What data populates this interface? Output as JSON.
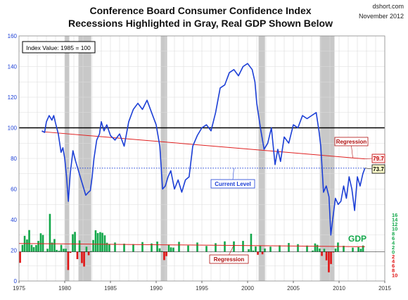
{
  "title_line1": "Conference Board Consumer Confidence Index",
  "title_line2": "Recessions Highlighted in Gray, Real GDP Shown Below",
  "source": "dshort.com",
  "date_label": "November 2012",
  "index_note": "Index Value: 1985  = 100",
  "chart_data": {
    "type": "line",
    "x_ticks": [
      "1975",
      "1980",
      "1985",
      "1990",
      "1995",
      "2000",
      "2005",
      "2010",
      "2015"
    ],
    "y_ticks": [
      "0",
      "20",
      "40",
      "60",
      "80",
      "100",
      "120",
      "140",
      "160"
    ],
    "gdp_ticks": [
      "16",
      "14",
      "12",
      "10",
      "8",
      "6",
      "4",
      "2",
      "0",
      "2",
      "4",
      "6",
      "8",
      "10"
    ],
    "xlim": [
      1975,
      2015
    ],
    "ylim": [
      0,
      160
    ],
    "recessions": [
      [
        1980.0,
        1980.5
      ],
      [
        1981.5,
        1982.9
      ],
      [
        1990.5,
        1991.2
      ],
      [
        2001.2,
        2001.9
      ],
      [
        2007.9,
        2009.5
      ]
    ],
    "reference_line_value": 100,
    "series": [
      {
        "name": "Consumer Confidence Index",
        "x": [
          1977.5,
          1977.8,
          1978.0,
          1978.3,
          1978.6,
          1978.8,
          1979.0,
          1979.3,
          1979.6,
          1979.8,
          1980.0,
          1980.2,
          1980.4,
          1980.6,
          1980.9,
          1981.2,
          1981.5,
          1981.8,
          1982.0,
          1982.3,
          1982.6,
          1982.8,
          1983.0,
          1983.2,
          1983.5,
          1983.8,
          1984.0,
          1984.3,
          1984.6,
          1985.0,
          1985.5,
          1986.0,
          1986.5,
          1987.0,
          1987.5,
          1988.0,
          1988.5,
          1989.0,
          1989.5,
          1990.0,
          1990.4,
          1990.7,
          1991.0,
          1991.3,
          1991.6,
          1992.0,
          1992.4,
          1992.8,
          1993.2,
          1993.6,
          1994.0,
          1994.5,
          1995.0,
          1995.5,
          1996.0,
          1996.5,
          1997.0,
          1997.5,
          1998.0,
          1998.5,
          1999.0,
          1999.5,
          2000.0,
          2000.5,
          2000.8,
          2001.0,
          2001.4,
          2001.8,
          2002.2,
          2002.6,
          2003.0,
          2003.3,
          2003.6,
          2004.0,
          2004.5,
          2005.0,
          2005.5,
          2006.0,
          2006.5,
          2007.0,
          2007.5,
          2007.8,
          2008.0,
          2008.3,
          2008.6,
          2008.9,
          2009.1,
          2009.3,
          2009.6,
          2009.9,
          2010.2,
          2010.5,
          2010.8,
          2011.1,
          2011.4,
          2011.7,
          2012.0,
          2012.3,
          2012.6,
          2012.83
        ],
        "values": [
          98,
          97,
          104,
          108,
          105,
          108,
          103,
          96,
          84,
          87,
          80,
          68,
          52,
          70,
          85,
          78,
          72,
          66,
          62,
          56,
          58,
          59,
          68,
          80,
          92,
          96,
          104,
          98,
          102,
          95,
          92,
          96,
          88,
          104,
          112,
          116,
          112,
          118,
          110,
          102,
          88,
          60,
          62,
          68,
          72,
          60,
          66,
          58,
          66,
          68,
          88,
          95,
          100,
          102,
          98,
          110,
          126,
          128,
          136,
          138,
          134,
          140,
          142,
          138,
          130,
          116,
          100,
          86,
          90,
          100,
          76,
          86,
          78,
          94,
          90,
          102,
          100,
          108,
          106,
          108,
          110,
          98,
          88,
          58,
          62,
          55,
          30,
          40,
          54,
          50,
          52,
          62,
          54,
          68,
          60,
          46,
          68,
          62,
          70,
          73.7
        ],
        "color": "#1c3fd6"
      },
      {
        "name": "GDP",
        "x": [
          1975.12,
          1975.38,
          1975.62,
          1975.88,
          1976.12,
          1976.38,
          1976.62,
          1976.88,
          1977.12,
          1977.38,
          1977.62,
          1977.88,
          1978.12,
          1978.38,
          1978.62,
          1978.88,
          1979.12,
          1979.38,
          1979.62,
          1979.88,
          1980.12,
          1980.38,
          1980.62,
          1980.88,
          1981.12,
          1981.38,
          1981.62,
          1981.88,
          1982.12,
          1982.38,
          1982.62,
          1982.88,
          1983.12,
          1983.38,
          1983.62,
          1983.88,
          1984.12,
          1984.38,
          1984.62,
          1984.88,
          1985.5,
          1986.5,
          1987.5,
          1988.5,
          1989.5,
          1990.12,
          1990.38,
          1990.62,
          1990.88,
          1991.12,
          1991.38,
          1991.62,
          1991.88,
          1992.5,
          1993.5,
          1994.5,
          1995.5,
          1996.5,
          1997.5,
          1998.5,
          1999.5,
          2000.12,
          2000.38,
          2000.62,
          2000.88,
          2001.12,
          2001.38,
          2001.62,
          2001.88,
          2002.5,
          2003.5,
          2004.5,
          2005.5,
          2006.5,
          2007.12,
          2007.38,
          2007.62,
          2007.88,
          2008.12,
          2008.38,
          2008.62,
          2008.88,
          2009.12,
          2009.38,
          2009.62,
          2009.88,
          2010.5,
          2011.5,
          2012.12,
          2012.38,
          2012.62
        ],
        "values": [
          -4.8,
          3,
          6.9,
          5.3,
          9.4,
          3,
          2,
          2.9,
          4.7,
          8,
          7.3,
          0,
          1.3,
          16.4,
          4,
          5.5,
          0.8,
          0.4,
          3,
          1.3,
          1.3,
          -7.9,
          -0.5,
          7.6,
          8.6,
          -3.2,
          4.9,
          -4.9,
          -6.4,
          2.2,
          -1.5,
          0.3,
          5.1,
          9.3,
          8.1,
          8.5,
          8.2,
          7.1,
          3.9,
          3.3,
          4,
          3.5,
          3.3,
          4.2,
          3.6,
          4.4,
          1.5,
          0.3,
          -3.6,
          -1.9,
          3.1,
          1.9,
          1.8,
          4.3,
          2.7,
          4,
          2.5,
          3.7,
          4.5,
          4.5,
          4.7,
          1.1,
          7.8,
          0.5,
          2.3,
          -1.3,
          2.7,
          -1.1,
          1.4,
          2.2,
          2.8,
          3.8,
          3.3,
          2.7,
          0.5,
          3.6,
          3,
          1.4,
          -1.8,
          1.3,
          -3.7,
          -8.9,
          -5.3,
          -0.3,
          1.4,
          4,
          2.6,
          1.8,
          2,
          1.3,
          2.7
        ],
        "color_positive": "#12a84a",
        "color_negative": "#e01414"
      }
    ],
    "annotations": [
      {
        "text": "Regression",
        "color": "#b01010"
      },
      {
        "text": "79.7",
        "color": "#c00000",
        "value": 79.7
      },
      {
        "text": "73.7",
        "color": "#000000",
        "value": 73.7
      },
      {
        "text": "Current Level",
        "color": "#1c3fd6"
      },
      {
        "text": "Regression",
        "color": "#b01010"
      },
      {
        "text": "GDP",
        "color": "#12a84a"
      }
    ],
    "regression_cci": {
      "x": [
        1977.5,
        2012.83
      ],
      "values": [
        97.5,
        79.7
      ],
      "color": "#e02020"
    },
    "current_level": {
      "value": 73.7,
      "color": "#1c3fd6"
    },
    "regression_gdp": {
      "x": [
        1975,
        2012.83
      ],
      "values": [
        3.6,
        2.2
      ],
      "color": "#e02020"
    },
    "grid": true
  }
}
